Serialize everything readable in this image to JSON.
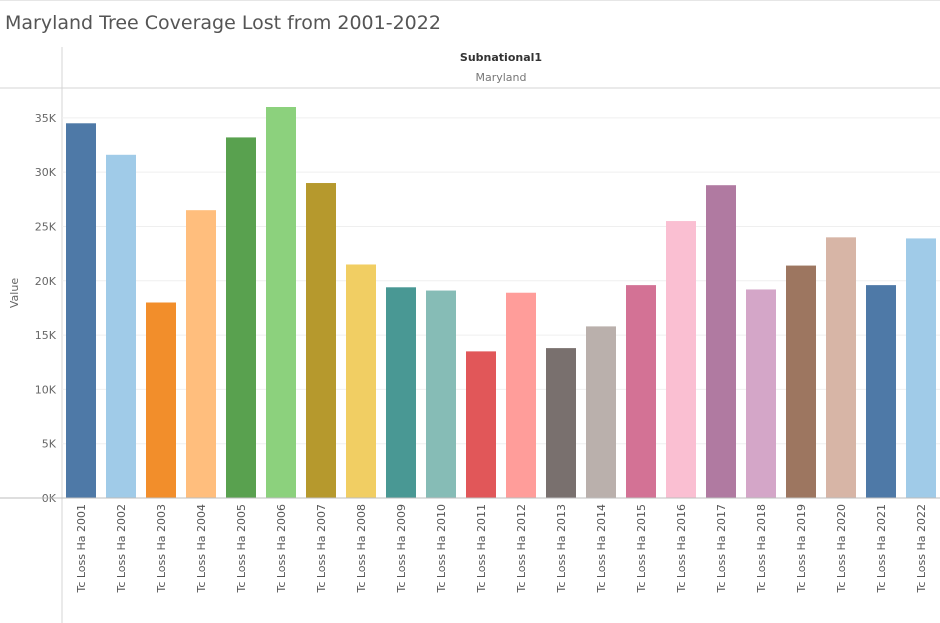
{
  "title": "Maryland Tree Coverage Lost from 2001-2022",
  "header": {
    "field": "Subnational1",
    "value": "Maryland"
  },
  "chart_data": {
    "type": "bar",
    "ylabel": "Value",
    "xlabel": "",
    "ylim": [
      0,
      36000
    ],
    "yticks": [
      0,
      5000,
      10000,
      15000,
      20000,
      25000,
      30000,
      35000
    ],
    "ytick_labels": [
      "0K",
      "5K",
      "10K",
      "15K",
      "20K",
      "25K",
      "30K",
      "35K"
    ],
    "grid": true,
    "categories": [
      "Tc Loss Ha 2001",
      "Tc Loss Ha 2002",
      "Tc Loss Ha 2003",
      "Tc Loss Ha 2004",
      "Tc Loss Ha 2005",
      "Tc Loss Ha 2006",
      "Tc Loss Ha 2007",
      "Tc Loss Ha 2008",
      "Tc Loss Ha 2009",
      "Tc Loss Ha 2010",
      "Tc Loss Ha 2011",
      "Tc Loss Ha 2012",
      "Tc Loss Ha 2013",
      "Tc Loss Ha 2014",
      "Tc Loss Ha 2015",
      "Tc Loss Ha 2016",
      "Tc Loss Ha 2017",
      "Tc Loss Ha 2018",
      "Tc Loss Ha 2019",
      "Tc Loss Ha 2020",
      "Tc Loss Ha 2021",
      "Tc Loss Ha 2022"
    ],
    "values": [
      34500,
      31600,
      18000,
      26500,
      33200,
      36000,
      29000,
      21500,
      19400,
      19100,
      13500,
      18900,
      13800,
      15800,
      19600,
      25500,
      28800,
      19200,
      21400,
      24000,
      19600,
      23900
    ],
    "colors": [
      "#4e79a7",
      "#a0cbe8",
      "#f28e2b",
      "#ffbe7d",
      "#59a14f",
      "#8cd17d",
      "#b6992d",
      "#f1ce63",
      "#499894",
      "#86bcb6",
      "#e15759",
      "#ff9d9a",
      "#79706e",
      "#bab0ac",
      "#d37295",
      "#fabfd2",
      "#b07aa1",
      "#d4a6c8",
      "#9d7660",
      "#d7b5a6",
      "#4e79a7",
      "#a0cbe8"
    ]
  }
}
